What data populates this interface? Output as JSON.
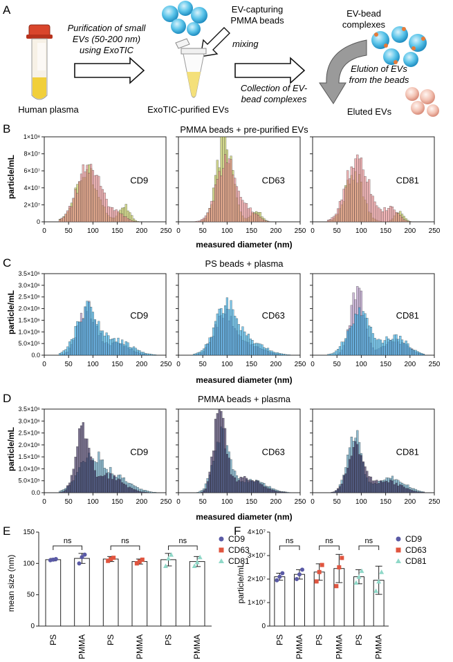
{
  "panel_a": {
    "letter": "A",
    "step1_text": [
      "Purification of small",
      "EVs (50-200 nm)",
      "using ExoTIC"
    ],
    "beads_label": [
      "EV-capturing",
      "PMMA beads"
    ],
    "mixing": "mixing",
    "collection_text": [
      "Collection of EV-",
      "bead complexes"
    ],
    "complex_label": [
      "EV-bead",
      "complexes"
    ],
    "elution_text": [
      "Elution of EVs",
      "from the beads"
    ],
    "human_plasma": "Human plasma",
    "exotic_evs": "ExoTIC-purified EVs",
    "eluted_evs": "Eluted EVs"
  },
  "colors": {
    "olive": "#b8c24a",
    "salmon": "#e7878a",
    "cyan": "#2ba6e0",
    "lilac": "#a98bbd",
    "navy": "#2a1d4e",
    "steel": "#4b8fb0",
    "cd9": "#5a5aa5",
    "cd63": "#e0553f",
    "cd81": "#8fd8c8"
  },
  "chart_data": [
    {
      "type": "histogram",
      "letter": "B",
      "title": "PMMA beads + pre-purified EVs",
      "ylabel": "particle/mL",
      "xlabel": "measured diameter (nm)",
      "xlim": [
        0,
        250
      ],
      "xticks": [
        "0",
        "50",
        "100",
        "150",
        "200",
        "250"
      ],
      "ylim": [
        0,
        100000000
      ],
      "yticks": [
        "0",
        "2×10⁷",
        "4×10⁷",
        "6×10⁷",
        "8×10⁷",
        "1×10⁸"
      ],
      "subplots": [
        "CD9",
        "CD63",
        "CD81"
      ],
      "series": [
        {
          "name": "PMMA beads + pre-purified EVs (A)",
          "color": "olive",
          "peak": [
            [
              87,
              62000000,
              22
            ],
            [
              95,
              97000000,
              16
            ],
            [
              85,
              58000000,
              18
            ]
          ],
          "shoulder": [
            [
              165,
              20000000,
              10
            ],
            [
              160,
              14000000,
              10
            ],
            [
              178,
              12000000,
              9
            ]
          ]
        },
        {
          "name": "PMMA beads + pre-purified EVs (B)",
          "color": "salmon",
          "peak": [
            [
              92,
              65000000,
              24
            ],
            [
              100,
              78000000,
              20
            ],
            [
              92,
              80000000,
              22
            ]
          ],
          "shoulder": [
            [
              150,
              10000000,
              15
            ],
            [
              150,
              10000000,
              15
            ],
            [
              160,
              16000000,
              15
            ]
          ]
        }
      ]
    },
    {
      "type": "histogram",
      "letter": "C",
      "title": "PS beads + plasma",
      "ylabel": "particle/mL",
      "xlabel": "measured diameter (nm)",
      "xlim": [
        0,
        250
      ],
      "xticks": [
        "0",
        "50",
        "100",
        "150",
        "200",
        "250"
      ],
      "ylim": [
        0,
        3500000
      ],
      "yticks": [
        "0.0",
        "5.0×10⁵",
        "1.0×10⁶",
        "1.5×10⁶",
        "2.0×10⁶",
        "2.5×10⁶",
        "3.0×10⁶",
        "3.5×10⁶"
      ],
      "subplots": [
        "CD9",
        "CD63",
        "CD81"
      ],
      "series": [
        {
          "name": "PS beads + plasma (A)",
          "color": "lilac",
          "peak": [
            [
              88,
              2000000,
              18
            ],
            [
              95,
              1900000,
              20
            ],
            [
              92,
              2750000,
              14
            ]
          ],
          "shoulder": [
            [
              150,
              500000,
              25
            ],
            [
              150,
              400000,
              25
            ],
            [
              170,
              600000,
              25
            ]
          ]
        },
        {
          "name": "PS beads + plasma (B)",
          "color": "cyan",
          "peak": [
            [
              88,
              1950000,
              22
            ],
            [
              98,
              2000000,
              24
            ],
            [
              95,
              1800000,
              22
            ]
          ],
          "shoulder": [
            [
              150,
              600000,
              30
            ],
            [
              150,
              500000,
              30
            ],
            [
              170,
              800000,
              25
            ]
          ]
        }
      ]
    },
    {
      "type": "histogram",
      "letter": "D",
      "title": "PMMA beads + plasma",
      "ylabel": "particle/mL",
      "xlabel": "measured diameter (nm)",
      "xlim": [
        0,
        250
      ],
      "xticks": [
        "0",
        "50",
        "100",
        "150",
        "200",
        "250"
      ],
      "ylim": [
        0,
        3500000
      ],
      "yticks": [
        "0.0",
        "5.0×10⁵",
        "1.0×10⁶",
        "1.5×10⁶",
        "2.0×10⁶",
        "2.5×10⁶",
        "3.0×10⁶",
        "3.5×10⁶"
      ],
      "subplots": [
        "CD9",
        "CD63",
        "CD81"
      ],
      "series": [
        {
          "name": "PMMA beads + plasma (A)",
          "color": "steel",
          "peak": [
            [
              95,
              1500000,
              25
            ],
            [
              88,
              2400000,
              16
            ],
            [
              85,
              2500000,
              14
            ]
          ],
          "shoulder": [
            [
              150,
              600000,
              30
            ],
            [
              150,
              500000,
              30
            ],
            [
              160,
              600000,
              30
            ]
          ]
        },
        {
          "name": "PMMA beads + plasma (B)",
          "color": "navy",
          "peak": [
            [
              78,
              2600000,
              14
            ],
            [
              85,
              3400000,
              12
            ],
            [
              88,
              2000000,
              16
            ]
          ],
          "shoulder": [
            [
              130,
              700000,
              30
            ],
            [
              140,
              600000,
              30
            ],
            [
              150,
              500000,
              30
            ]
          ]
        }
      ]
    },
    {
      "type": "bar",
      "letter": "E",
      "ylabel": "mean size (nm)",
      "ylim": [
        0,
        150
      ],
      "yticks": [
        "0",
        "50",
        "100",
        "150"
      ],
      "categories": [
        "PS",
        "PMMA",
        "PS",
        "PMMA",
        "PS",
        "PMMA"
      ],
      "groups": [
        "CD9",
        "CD63",
        "CD81"
      ],
      "values": [
        106,
        108,
        107,
        103,
        106,
        103
      ],
      "errors": [
        2,
        8,
        4,
        4,
        10,
        8
      ],
      "points": [
        [
          105,
          106,
          107
        ],
        [
          100,
          110,
          114
        ],
        [
          104,
          107,
          109
        ],
        [
          100,
          103,
          106
        ],
        [
          96,
          108,
          114
        ],
        [
          96,
          102,
          110
        ]
      ],
      "ns": [
        "ns",
        "ns",
        "ns"
      ],
      "legend": [
        "CD9",
        "CD63",
        "CD81"
      ]
    },
    {
      "type": "bar",
      "letter": "F",
      "ylabel": "particle/mL",
      "ylim": [
        0,
        40000000
      ],
      "yticks": [
        "0",
        "1×10⁷",
        "2×10⁷",
        "3×10⁷",
        "4×10⁷"
      ],
      "categories": [
        "PS",
        "PMMA",
        "PS",
        "PMMA",
        "PS",
        "PMMA"
      ],
      "groups": [
        "CD9",
        "CD63",
        "CD81"
      ],
      "values": [
        21000000,
        22000000,
        23000000,
        24500000,
        21000000,
        19500000
      ],
      "errors": [
        1500000,
        2000000,
        3500000,
        6000000,
        3000000,
        6000000
      ],
      "points": [
        [
          19500000,
          21000000,
          22500000
        ],
        [
          20000000,
          22000000,
          24000000
        ],
        [
          19000000,
          23000000,
          26000000
        ],
        [
          17000000,
          25000000,
          29000000
        ],
        [
          18500000,
          21000000,
          23500000
        ],
        [
          15000000,
          19000000,
          23000000
        ]
      ],
      "ns": [
        "ns",
        "ns",
        "ns"
      ],
      "legend": [
        "CD9",
        "CD63",
        "CD81"
      ]
    }
  ]
}
